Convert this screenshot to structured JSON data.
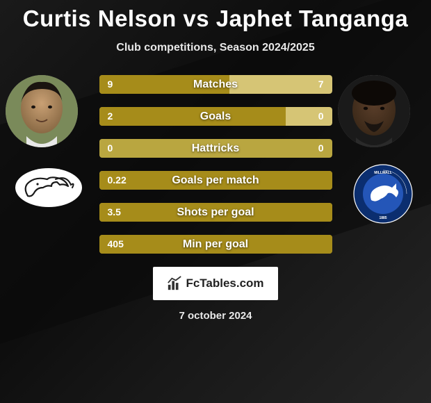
{
  "title": "Curtis Nelson vs Japhet Tanganga",
  "subtitle": "Club competitions, Season 2024/2025",
  "date": "7 october 2024",
  "logo_text": "FcTables.com",
  "colors": {
    "bar_dark": "#a68c1a",
    "bar_light": "#d6c575",
    "bar_neutral": "#b9a640",
    "title_color": "#ffffff",
    "subtitle_color": "#e8e8e8"
  },
  "stats": [
    {
      "label": "Matches",
      "left_val": "9",
      "right_val": "7",
      "left_pct": 56,
      "right_pct": 44,
      "winner": "left"
    },
    {
      "label": "Goals",
      "left_val": "2",
      "right_val": "0",
      "left_pct": 80,
      "right_pct": 20,
      "winner": "left"
    },
    {
      "label": "Hattricks",
      "left_val": "0",
      "right_val": "0",
      "left_pct": 50,
      "right_pct": 50,
      "winner": "none"
    },
    {
      "label": "Goals per match",
      "left_val": "0.22",
      "right_val": "",
      "left_pct": 100,
      "right_pct": 0,
      "winner": "left"
    },
    {
      "label": "Shots per goal",
      "left_val": "3.5",
      "right_val": "",
      "left_pct": 100,
      "right_pct": 0,
      "winner": "left"
    },
    {
      "label": "Min per goal",
      "left_val": "405",
      "right_val": "",
      "left_pct": 100,
      "right_pct": 0,
      "winner": "left"
    }
  ],
  "player_left": {
    "name": "Curtis Nelson",
    "club": "Derby County"
  },
  "player_right": {
    "name": "Japhet Tanganga",
    "club": "Millwall"
  }
}
